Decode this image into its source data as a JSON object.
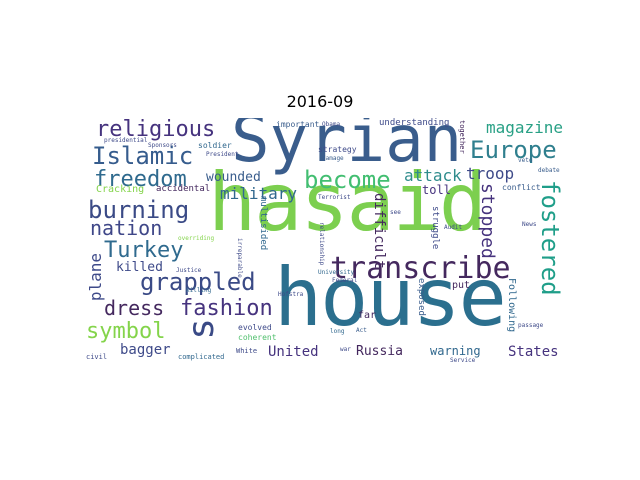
{
  "title": "2016-09",
  "colors": {
    "background": "#ffffff",
    "teal_dark": "#2b6f8e",
    "teal": "#2f8c8c",
    "green": "#62c85e",
    "lime": "#84d44b",
    "navy": "#3a4a86",
    "purple": "#44285e"
  },
  "words": {
    "hasaid": "hasaid",
    "house": "house",
    "syrian": "Syrian",
    "s": "s",
    "transcribe": "transcribe",
    "religious": "religious",
    "islamic": "Islamic",
    "europe": "Europe",
    "freedom": "freedom",
    "become": "become",
    "burning": "burning",
    "magazine": "magazine",
    "nation": "nation",
    "turkey": "Turkey",
    "fostered": "fostered",
    "grappled": "grappled",
    "dress": "dress",
    "fashion": "fashion",
    "symbol": "symbol",
    "plane": "plane",
    "killed": "killed",
    "military": "military",
    "attack": "attack",
    "wounded": "wounded",
    "stopped": "stopped",
    "troop": "troop",
    "toll": "toll",
    "cracking": "Cracking",
    "accidental": "accidental",
    "bagger": "bagger",
    "united": "United",
    "russia": "Russia",
    "warning": "warning",
    "states": "States",
    "difficult": "difficult",
    "multisided": "multisided",
    "struggle": "struggle",
    "exposed": "exposed",
    "put": "put",
    "following": "Following",
    "far": "far",
    "understanding": "understanding",
    "important": "important",
    "obama": "Obama",
    "strategy": "strategy",
    "damage": "damage",
    "president": "President",
    "presidential": "presidential",
    "sponsors": "Sponsors",
    "soldier": "soldier",
    "together": "together",
    "conflict": "conflict",
    "terrorist": "Terrorist",
    "veto": "veto",
    "debate": "debate",
    "overriding": "overriding",
    "irreparable": "irreparable",
    "relationship": "relationship",
    "university": "University",
    "hofstra": "Hofstra",
    "justice": "Justice",
    "killing": "killing",
    "evolved": "evolved",
    "coherent": "coherent",
    "complicated": "complicated",
    "white": "White",
    "long": "long",
    "war": "war",
    "act": "Act",
    "passage": "passage",
    "service": "Service",
    "civil": "civil",
    "audit": "Audit",
    "news": "News",
    "see": "see",
    "federal": "Federal"
  }
}
